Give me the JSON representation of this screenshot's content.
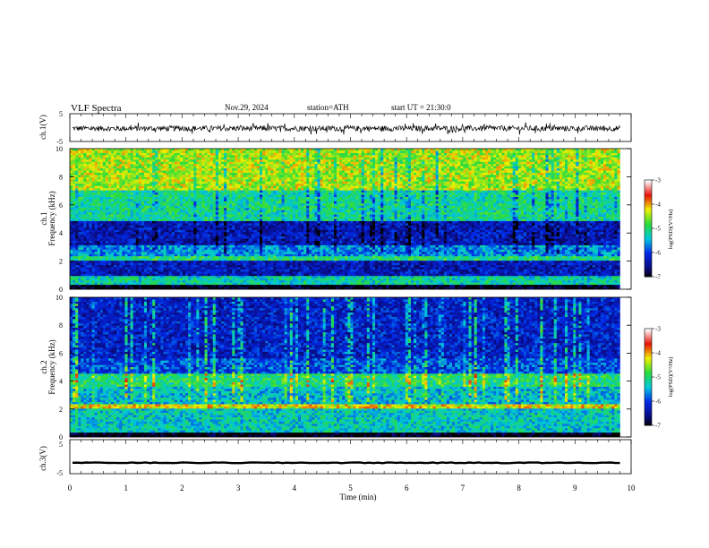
{
  "header": {
    "title": "VLF  Spectra",
    "date": "Nov.29, 2024",
    "station": "station=ATH",
    "start_ut": "start  UT  =   21:30:0"
  },
  "chart_data": [
    {
      "type": "line",
      "name": "ch1-waveform",
      "ylabel": "ch.1(V)",
      "ylim": [
        -5,
        5
      ],
      "yticks": [
        "5",
        "-5"
      ],
      "xlim": [
        0,
        10
      ],
      "line_color": "#000000",
      "baseline": -0.3,
      "amplitude": 1.4
    },
    {
      "type": "heatmap",
      "name": "ch1-spectrogram",
      "ylabel_channel": "ch.1",
      "ylabel": "Frequency  (kHz)",
      "ylim": [
        0,
        10
      ],
      "yticks": [
        "0",
        "2",
        "4",
        "6",
        "8",
        "10"
      ],
      "xlim": [
        0,
        9.8
      ],
      "bands": [
        {
          "f0": 0,
          "f1": 0.35,
          "level": -7
        },
        {
          "f0": 0.35,
          "f1": 0.9,
          "level": -5.2
        },
        {
          "f0": 0.9,
          "f1": 2.0,
          "level": -6.3
        },
        {
          "f0": 2.0,
          "f1": 2.4,
          "level": -5.0
        },
        {
          "f0": 2.4,
          "f1": 3.2,
          "level": -5.6
        },
        {
          "f0": 3.2,
          "f1": 4.8,
          "level": -6.3
        },
        {
          "f0": 4.8,
          "f1": 7.0,
          "level": -5.1
        },
        {
          "f0": 7.0,
          "f1": 10.0,
          "level": -4.4
        }
      ],
      "colorbar": {
        "label": "log(PSD)(V²/Hz)",
        "ticks": [
          "-3",
          "-4",
          "-5",
          "-6",
          "-7"
        ],
        "range": [
          -7,
          -3
        ]
      }
    },
    {
      "type": "heatmap",
      "name": "ch2-spectrogram",
      "ylabel_channel": "ch.2",
      "ylabel": "Frequency  (kHz)",
      "ylim": [
        0,
        10
      ],
      "yticks": [
        "0",
        "2",
        "4",
        "6",
        "8",
        "10"
      ],
      "xlim": [
        0,
        9.8
      ],
      "bands": [
        {
          "f0": 0,
          "f1": 0.35,
          "level": -7
        },
        {
          "f0": 0.35,
          "f1": 2.0,
          "level": -5.3
        },
        {
          "f0": 2.0,
          "f1": 2.3,
          "level": -4.2
        },
        {
          "f0": 2.3,
          "f1": 3.6,
          "level": -5.4
        },
        {
          "f0": 3.6,
          "f1": 4.6,
          "level": -5.0
        },
        {
          "f0": 4.6,
          "f1": 5.6,
          "level": -5.9
        },
        {
          "f0": 5.6,
          "f1": 10.0,
          "level": -6.2
        }
      ],
      "colorbar": {
        "label": "log(PSD)(V²/Hz)",
        "ticks": [
          "-3",
          "-4",
          "-5",
          "-6",
          "-7"
        ],
        "range": [
          -7,
          -3
        ]
      }
    },
    {
      "type": "line",
      "name": "ch3-waveform",
      "ylabel": "ch.3(V)",
      "ylim": [
        -5,
        5
      ],
      "yticks": [
        "5",
        "-5"
      ],
      "xlim": [
        0,
        10
      ],
      "line_color": "#000000",
      "baseline": -1.8,
      "amplitude": 0.25
    }
  ],
  "time_axis": {
    "label": "Time  (min)",
    "ticks": [
      "0",
      "1",
      "2",
      "3",
      "4",
      "5",
      "6",
      "7",
      "8",
      "9",
      "10"
    ],
    "range": [
      0,
      10
    ]
  }
}
